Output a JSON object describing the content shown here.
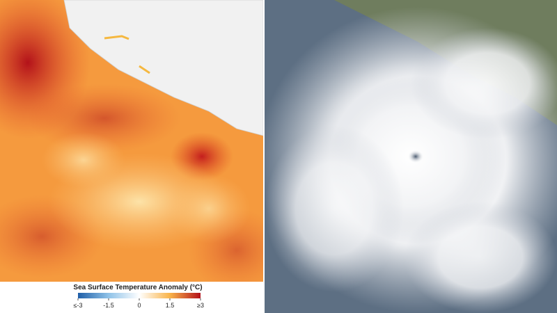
{
  "legend": {
    "title": "Sea Surface Temperature Anomaly (°C)",
    "range": [
      -3,
      3
    ],
    "ticks": [
      {
        "value": -3,
        "label": "≤-3"
      },
      -1.5,
      0,
      1.5,
      {
        "value": 3,
        "label": "≥3"
      }
    ]
  }
}
